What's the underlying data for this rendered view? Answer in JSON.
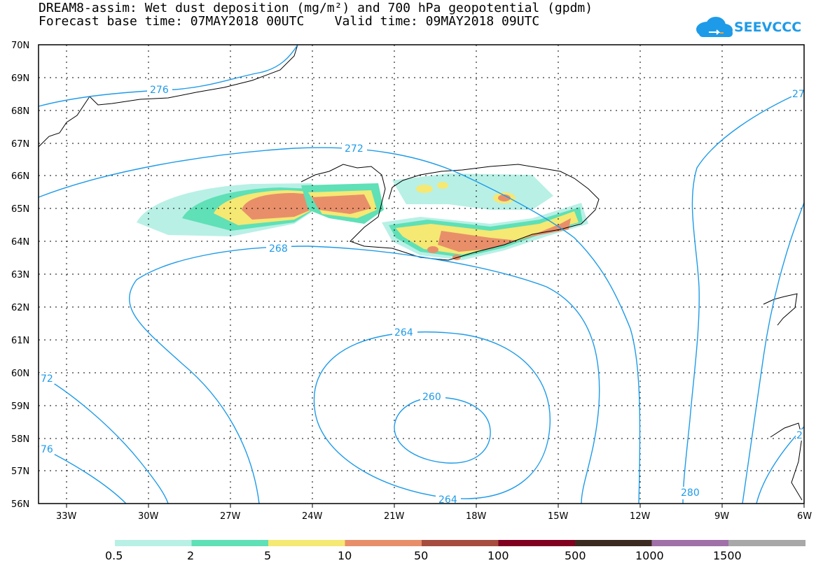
{
  "header": {
    "line1": "DREAM8-assim: Wet dust deposition (mg/m²) and 700 hPa geopotential (gpdm)",
    "line2": "Forecast base time: 07MAY2018 00UTC    Valid time: 09MAY2018 09UTC"
  },
  "logo": {
    "text": "SEEVCCC",
    "icon": "cloud-icon",
    "color": "#1e9be8"
  },
  "axes": {
    "lat_labels": [
      "70N",
      "69N",
      "68N",
      "67N",
      "66N",
      "65N",
      "64N",
      "63N",
      "62N",
      "61N",
      "60N",
      "59N",
      "58N",
      "57N",
      "56N"
    ],
    "lon_labels": [
      "33W",
      "30W",
      "27W",
      "24W",
      "21W",
      "18W",
      "15W",
      "12W",
      "9W",
      "6W"
    ]
  },
  "contours": {
    "color": "#1e9be8",
    "labels": [
      "276",
      "272",
      "268",
      "264",
      "260",
      "264",
      "280",
      "72",
      "76",
      "27",
      "2"
    ]
  },
  "legend": {
    "colors": [
      "#b8f0e6",
      "#5fe0b6",
      "#f5e873",
      "#e88f6a",
      "#a64d3f",
      "#800020",
      "#3b2a1f",
      "#a070a8",
      "#a8a8a8"
    ],
    "labels": [
      "0.5",
      "2",
      "5",
      "10",
      "50",
      "100",
      "500",
      "1000",
      "1500"
    ]
  }
}
